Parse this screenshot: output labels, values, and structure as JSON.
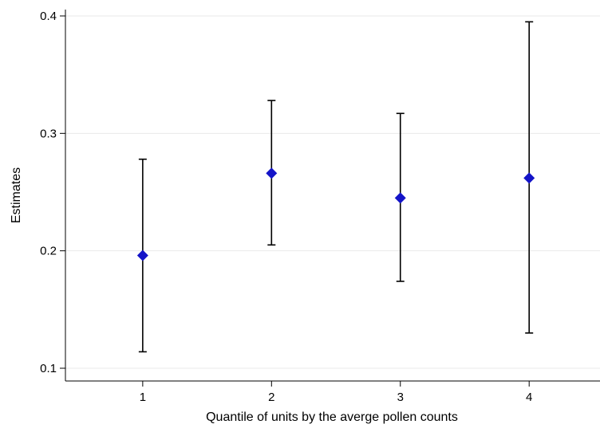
{
  "chart_data": {
    "type": "scatter",
    "title": "",
    "xlabel": "Quantile of units by the averge pollen counts",
    "ylabel": "Estimates",
    "x_ticks": [
      "1",
      "2",
      "3",
      "4"
    ],
    "y_ticks": [
      "0.1",
      "0.2",
      "0.3",
      "0.4"
    ],
    "xlim": [
      0.4,
      4.55
    ],
    "ylim": [
      0.1,
      0.4
    ],
    "grid": "horizontal",
    "marker": "diamond",
    "colors": {
      "marker": "#1414c8",
      "error_bar": "#000000",
      "grid": "#eaeaea",
      "axis": "#000000"
    },
    "points": [
      {
        "x": 1,
        "estimate": 0.196,
        "lower": 0.114,
        "upper": 0.278
      },
      {
        "x": 2,
        "estimate": 0.266,
        "lower": 0.205,
        "upper": 0.328
      },
      {
        "x": 3,
        "estimate": 0.245,
        "lower": 0.174,
        "upper": 0.317
      },
      {
        "x": 4,
        "estimate": 0.262,
        "lower": 0.13,
        "upper": 0.395
      }
    ]
  }
}
